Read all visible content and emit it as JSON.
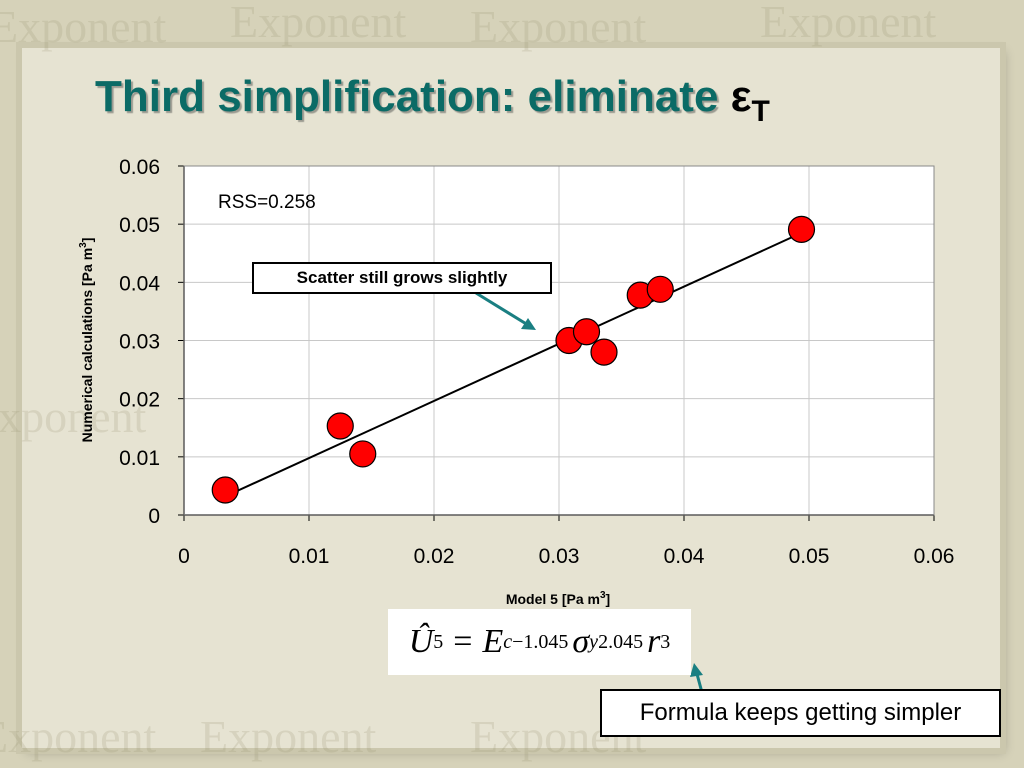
{
  "slide": {
    "title": "Third simplification: eliminate",
    "title_symbol": "ε",
    "title_subscript": "T",
    "watermark": "Exponent",
    "callout": "Scatter still grows slightly",
    "note": "Formula keeps getting simpler",
    "accent_color": "#0b6b66",
    "arrow_color": "#1a7f82"
  },
  "formula": {
    "lhs": "Û",
    "lhs_sub": "5",
    "equals": "=",
    "term1": "E",
    "term1_sub": "c",
    "term1_exp": "−1.045",
    "term2": "σ",
    "term2_sub": "y",
    "term2_exp": "2.045",
    "term3": "r",
    "term3_exp": "3"
  },
  "chart_data": {
    "type": "scatter",
    "annotation": "RSS=0.258",
    "xlabel": "Model 5 [Pa m",
    "xlabel_sup": "3",
    "xlabel_end": "]",
    "ylabel": "Numerical calculations [Pa m",
    "ylabel_sup": "3",
    "ylabel_end": "]",
    "xlim": [
      0,
      0.06
    ],
    "ylim": [
      0,
      0.06
    ],
    "x_ticks": [
      "0",
      "0.01",
      "0.02",
      "0.03",
      "0.04",
      "0.05",
      "0.06"
    ],
    "y_ticks": [
      "0",
      "0.01",
      "0.02",
      "0.03",
      "0.04",
      "0.05",
      "0.06"
    ],
    "grid": true,
    "point_color": "#ff0000",
    "points": [
      {
        "x": 0.0033,
        "y": 0.0043
      },
      {
        "x": 0.0125,
        "y": 0.0153
      },
      {
        "x": 0.0143,
        "y": 0.0105
      },
      {
        "x": 0.0308,
        "y": 0.03
      },
      {
        "x": 0.0322,
        "y": 0.0315
      },
      {
        "x": 0.0336,
        "y": 0.028
      },
      {
        "x": 0.0365,
        "y": 0.0378
      },
      {
        "x": 0.0381,
        "y": 0.0388
      },
      {
        "x": 0.0494,
        "y": 0.0491
      }
    ],
    "fit_line": [
      {
        "x": 0.0033,
        "y": 0.0032
      },
      {
        "x": 0.0494,
        "y": 0.0485
      }
    ]
  }
}
